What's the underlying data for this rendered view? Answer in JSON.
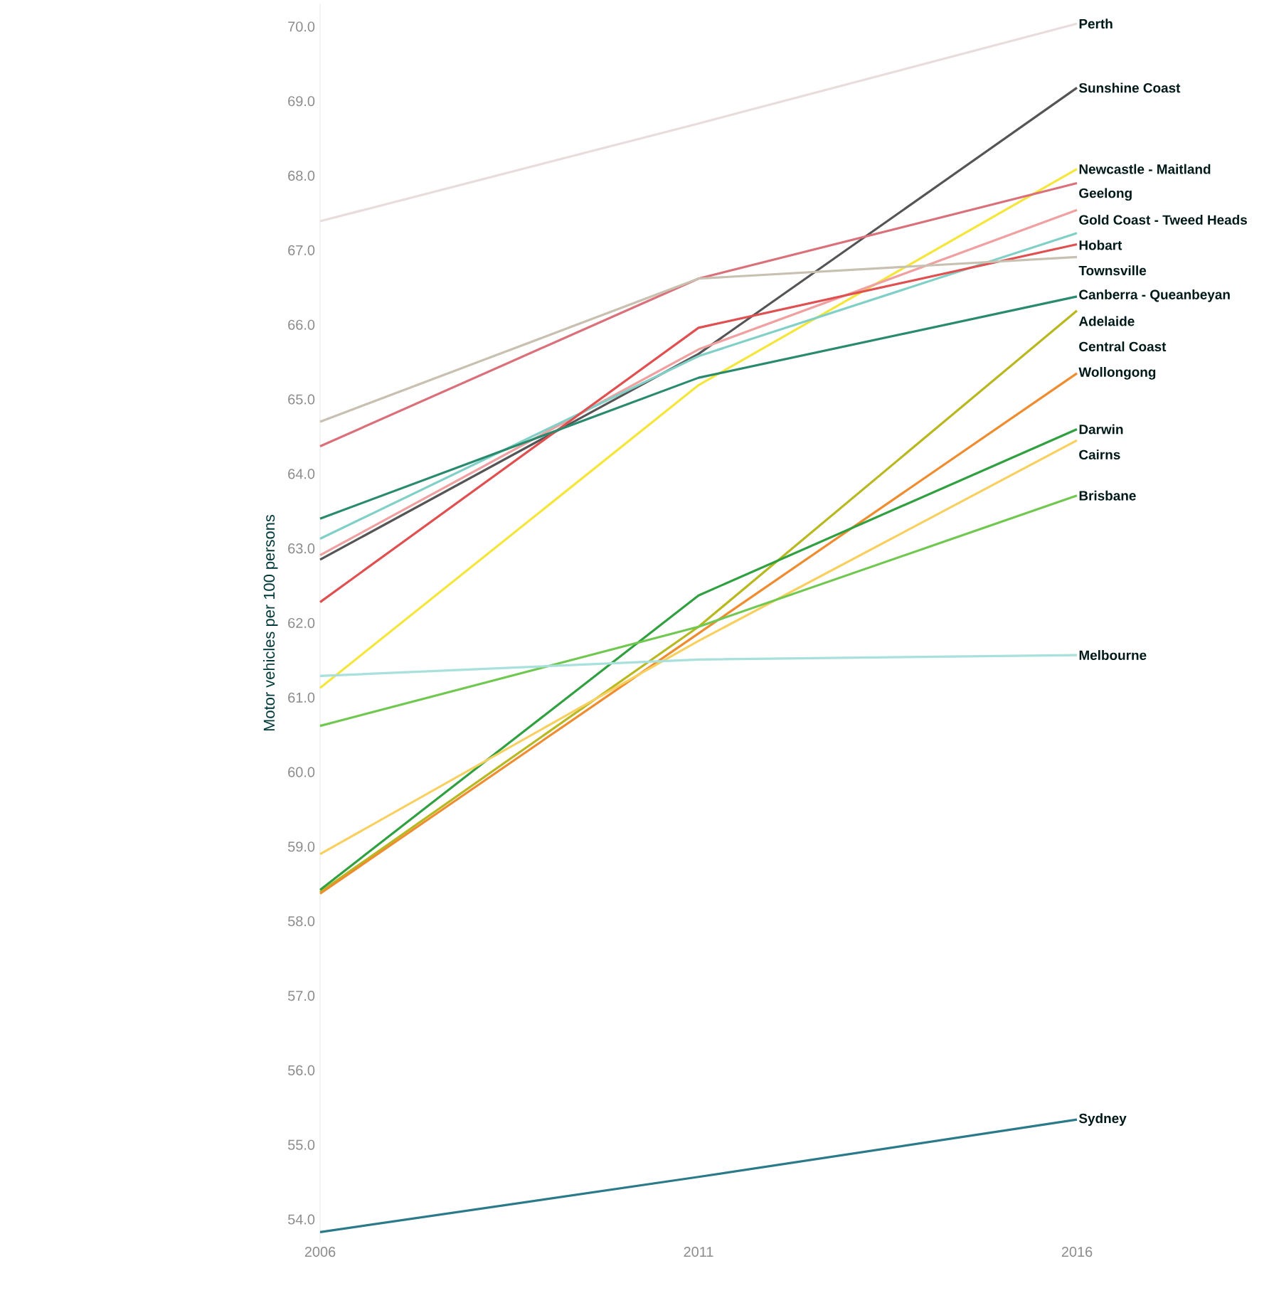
{
  "chart_data": {
    "type": "line",
    "ylabel": "Motor vehicles per 100 persons",
    "x": [
      2006,
      2011,
      2016
    ],
    "xlim": [
      2006,
      2016
    ],
    "xticks": [
      2006,
      2011,
      2016
    ],
    "ylim": [
      53.7,
      70.3
    ],
    "yticks": [
      {
        "value": 54,
        "label": "54.0"
      },
      {
        "value": 55,
        "label": "55.0"
      },
      {
        "value": 56,
        "label": "56.0"
      },
      {
        "value": 57,
        "label": "57.0"
      },
      {
        "value": 58,
        "label": "58.0"
      },
      {
        "value": 59,
        "label": "59.0"
      },
      {
        "value": 60,
        "label": "60.0"
      },
      {
        "value": 61,
        "label": "61.0"
      },
      {
        "value": 62,
        "label": "62.0"
      },
      {
        "value": 63,
        "label": "63.0"
      },
      {
        "value": 64,
        "label": "64.0"
      },
      {
        "value": 65,
        "label": "65.0"
      },
      {
        "value": 66,
        "label": "66.0"
      },
      {
        "value": 67,
        "label": "67.0"
      },
      {
        "value": 68,
        "label": "68.0"
      },
      {
        "value": 69,
        "label": "69.0"
      },
      {
        "value": 70,
        "label": "70.0"
      }
    ],
    "grid": false,
    "legend": false,
    "marker": "none",
    "line_style": "solid",
    "series": [
      {
        "name": "Perth",
        "color": "#e8dcdc",
        "values": [
          67.39,
          68.7,
          70.04
        ]
      },
      {
        "name": "Sunshine Coast",
        "color": "#555555",
        "values": [
          62.85,
          65.61,
          69.18
        ]
      },
      {
        "name": "Newcastle - Maitland",
        "color": "#f5e63c",
        "values": [
          61.13,
          65.19,
          68.09
        ]
      },
      {
        "name": "Geelong",
        "color": "#d9707a",
        "values": [
          64.37,
          66.62,
          67.9
        ]
      },
      {
        "name": "Gold Coast - Tweed Heads",
        "color": "#f0a0a0",
        "values": [
          62.91,
          65.67,
          67.54
        ]
      },
      {
        "name": "Hobart",
        "color": "#80d0c8",
        "values": [
          63.13,
          65.58,
          67.23
        ]
      },
      {
        "name": "Townsville",
        "color": "#e05050",
        "values": [
          62.28,
          65.96,
          67.08
        ]
      },
      {
        "name": "Canberra - Queanbeyan",
        "color": "#c8c0b0",
        "values": [
          64.7,
          66.62,
          66.91
        ]
      },
      {
        "name": "Adelaide",
        "color": "#2a8a6e",
        "values": [
          63.4,
          65.29,
          66.38
        ]
      },
      {
        "name": "Central Coast",
        "color": "#b8b820",
        "values": [
          58.39,
          61.95,
          66.19
        ]
      },
      {
        "name": "Wollongong",
        "color": "#f08c30",
        "values": [
          58.37,
          61.86,
          65.35
        ]
      },
      {
        "name": "Darwin",
        "color": "#30a040",
        "values": [
          58.42,
          62.37,
          64.6
        ]
      },
      {
        "name": "Cairns",
        "color": "#f8d060",
        "values": [
          58.9,
          61.76,
          64.45
        ]
      },
      {
        "name": "Brisbane",
        "color": "#70c850",
        "values": [
          60.62,
          61.95,
          63.71
        ]
      },
      {
        "name": "Melbourne",
        "color": "#a8e0dc",
        "values": [
          61.29,
          61.51,
          61.57
        ]
      },
      {
        "name": "Sydney",
        "color": "#2a7a8a",
        "values": [
          53.83,
          54.57,
          55.34
        ]
      }
    ]
  }
}
